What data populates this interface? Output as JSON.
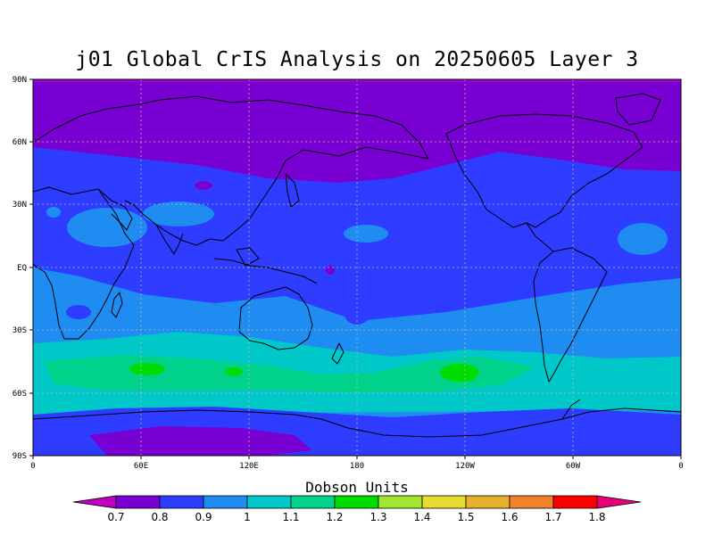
{
  "title": "j01 Global CrIS Analysis on 20250605 Layer 3",
  "lat_labels": [
    "90N",
    "60N",
    "30N",
    "EQ",
    "30S",
    "60S",
    "90S"
  ],
  "lon_labels": [
    "0",
    "60E",
    "120E",
    "180",
    "120W",
    "60W",
    "0"
  ],
  "colorbar": {
    "title": "Dobson Units",
    "labels": [
      "0.7",
      "0.8",
      "0.9",
      "1",
      "1.1",
      "1.2",
      "1.3",
      "1.4",
      "1.5",
      "1.6",
      "1.7",
      "1.8"
    ],
    "colors": [
      "#c000c0",
      "#7800d2",
      "#2e3cff",
      "#1e8cf0",
      "#00c8c8",
      "#00d28c",
      "#00dc00",
      "#a0e632",
      "#e6dc32",
      "#e6af2d",
      "#f08228",
      "#fa0000",
      "#e6007a"
    ]
  },
  "chart_data": {
    "type": "heatmap",
    "title": "j01 Global CrIS Analysis on 20250605 Layer 3",
    "variable": "Dobson Units",
    "x_range": [
      0,
      360
    ],
    "y_range": [
      -90,
      90
    ],
    "grid": true,
    "legend_placement": "bottom",
    "levels": [
      0.7,
      0.8,
      0.9,
      1,
      1.1,
      1.2,
      1.3,
      1.4,
      1.5,
      1.6,
      1.7,
      1.8
    ]
  }
}
